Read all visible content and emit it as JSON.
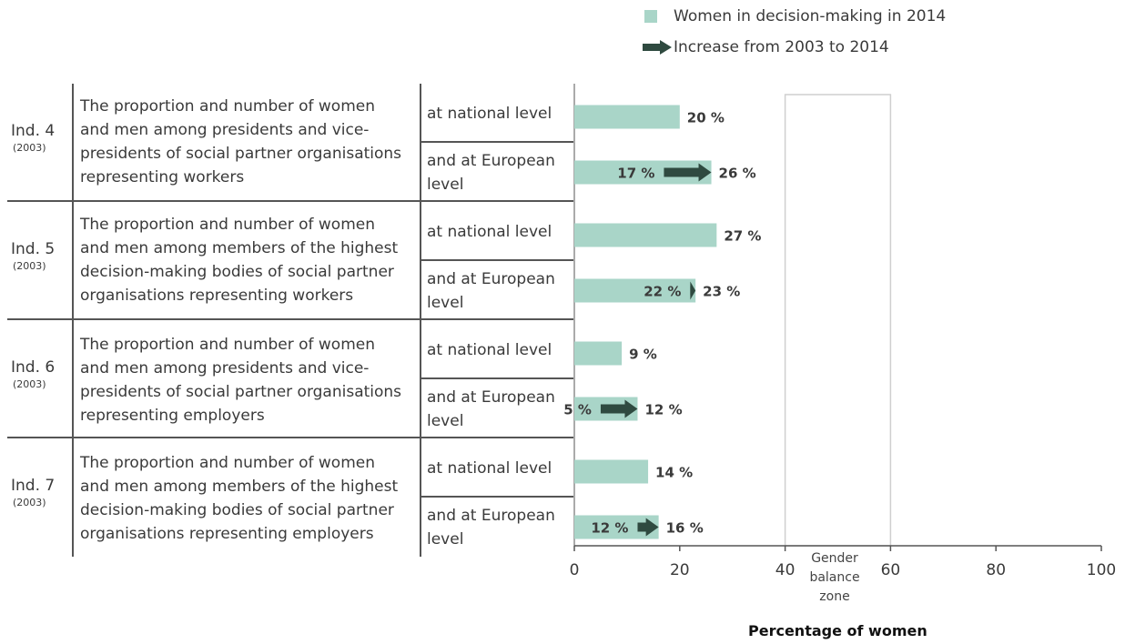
{
  "legend": {
    "bar_label": "Women in decision-making in 2014",
    "arrow_label": "Increase from 2003 to 2014"
  },
  "colors": {
    "bar": "#a9d5c8",
    "arrow": "#2f4a40",
    "axis": "#555555",
    "text": "#3a3a3a"
  },
  "indicators": [
    {
      "id": "Ind. 4",
      "year": "(2003)",
      "description": [
        "The proportion and number of women",
        "and men among presidents and vice-",
        "presidents of social partner organisations",
        "representing workers"
      ],
      "levels": [
        [
          "at national level"
        ],
        [
          "and at European",
          "level"
        ]
      ]
    },
    {
      "id": "Ind. 5",
      "year": "(2003)",
      "description": [
        "The proportion and number of women",
        "and men among members of the highest",
        "decision-making bodies of social partner",
        "organisations representing workers"
      ],
      "levels": [
        [
          "at national level"
        ],
        [
          "and at European",
          "level"
        ]
      ]
    },
    {
      "id": "Ind. 6",
      "year": "(2003)",
      "description": [
        "The proportion and number of women",
        "and men among presidents and vice-",
        "presidents of social partner organisations",
        "representing employers"
      ],
      "levels": [
        [
          "at national level"
        ],
        [
          "and at European",
          "level"
        ]
      ]
    },
    {
      "id": "Ind. 7",
      "year": "(2003)",
      "description": [
        "The proportion and number of women",
        "and men among members of the highest",
        "decision-making bodies of social partner",
        "organisations representing employers"
      ],
      "levels": [
        [
          "at national level"
        ],
        [
          "and at European",
          "level"
        ]
      ]
    }
  ],
  "chart_data": {
    "type": "bar",
    "orientation": "horizontal",
    "xlabel": "Percentage of women",
    "xlim": [
      0,
      100
    ],
    "xticks": [
      0,
      20,
      40,
      60,
      80,
      100
    ],
    "grid": false,
    "legend_position": "top",
    "shaded_zone": {
      "from": 40,
      "to": 60,
      "label": [
        "Gender",
        "balance",
        "zone"
      ]
    },
    "rows": [
      {
        "indicator": "Ind. 4",
        "level": "at national level",
        "value_2014": 20,
        "label_2014": "20 %"
      },
      {
        "indicator": "Ind. 4",
        "level": "and at European level",
        "value_2003": 17,
        "value_2014": 26,
        "label_2003": "17 %",
        "label_2014": "26 %"
      },
      {
        "indicator": "Ind. 5",
        "level": "at national level",
        "value_2014": 27,
        "label_2014": "27 %"
      },
      {
        "indicator": "Ind. 5",
        "level": "and at European level",
        "value_2003": 22,
        "value_2014": 23,
        "label_2003": "22 %",
        "label_2014": "23 %"
      },
      {
        "indicator": "Ind. 6",
        "level": "at national level",
        "value_2014": 9,
        "label_2014": "9 %"
      },
      {
        "indicator": "Ind. 6",
        "level": "and at European level",
        "value_2003": 5,
        "value_2014": 12,
        "label_2003": "5 %",
        "label_2014": "12 %"
      },
      {
        "indicator": "Ind. 7",
        "level": "at national level",
        "value_2014": 14,
        "label_2014": "14 %"
      },
      {
        "indicator": "Ind. 7",
        "level": "and at European level",
        "value_2003": 12,
        "value_2014": 16,
        "label_2003": "12 %",
        "label_2014": "16 %"
      }
    ]
  }
}
